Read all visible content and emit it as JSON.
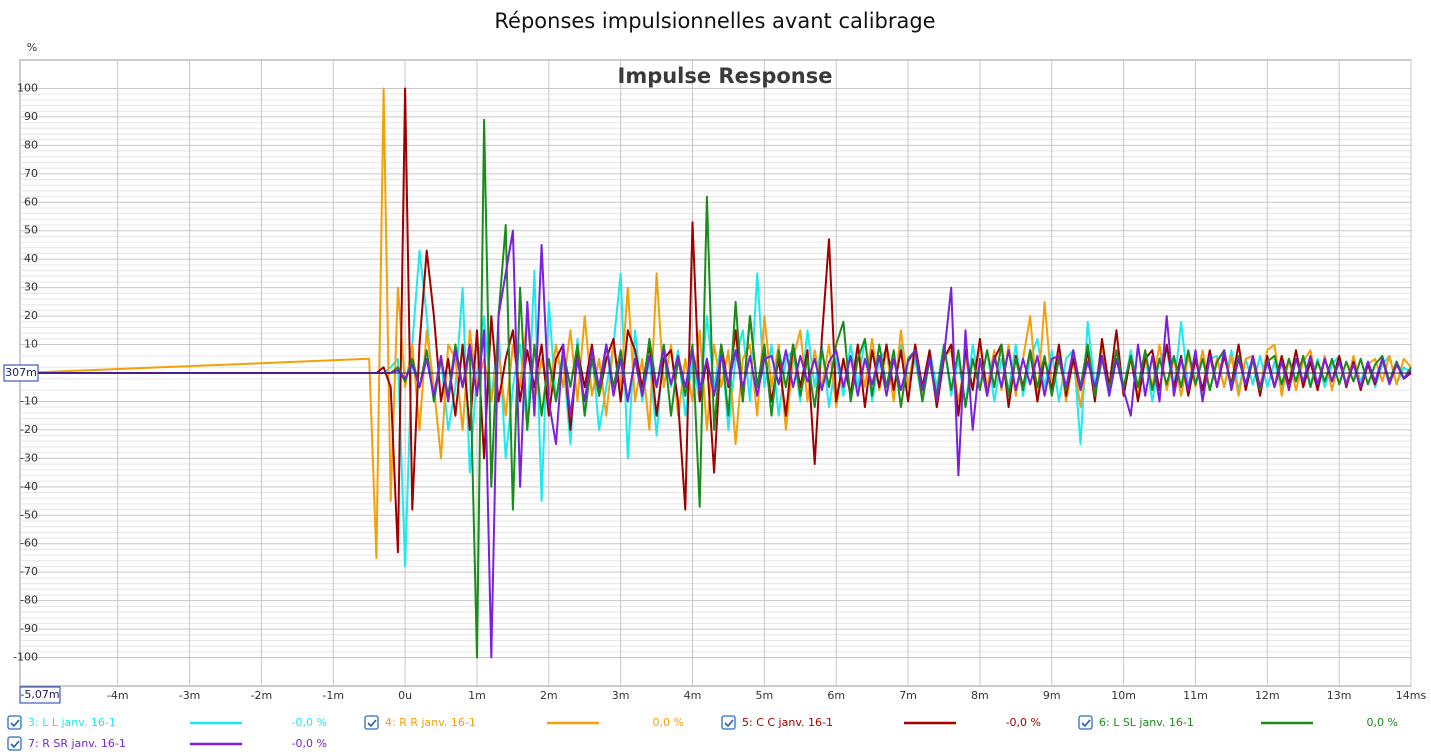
{
  "chart_data": {
    "type": "line",
    "title": "Réponses impulsionnelles avant calibrage",
    "subtitle": "Impulse Response",
    "y_unit": "%",
    "y_cursor_label": "307m",
    "x_cursor_label": "-5,07m",
    "xlim": [
      -5.36,
      14
    ],
    "ylim": [
      -110,
      110
    ],
    "xticks": [
      {
        "value": -4,
        "label": "-4m"
      },
      {
        "value": -3,
        "label": "-3m"
      },
      {
        "value": -2,
        "label": "-2m"
      },
      {
        "value": -1,
        "label": "-1m"
      },
      {
        "value": 0,
        "label": "0u"
      },
      {
        "value": 1,
        "label": "1m"
      },
      {
        "value": 2,
        "label": "2m"
      },
      {
        "value": 3,
        "label": "3m"
      },
      {
        "value": 4,
        "label": "4m"
      },
      {
        "value": 5,
        "label": "5m"
      },
      {
        "value": 6,
        "label": "6m"
      },
      {
        "value": 7,
        "label": "7m"
      },
      {
        "value": 8,
        "label": "8m"
      },
      {
        "value": 9,
        "label": "9m"
      },
      {
        "value": 10,
        "label": "10m"
      },
      {
        "value": 11,
        "label": "11m"
      },
      {
        "value": 12,
        "label": "12m"
      },
      {
        "value": 13,
        "label": "13m"
      },
      {
        "value": 14,
        "label": "14ms"
      }
    ],
    "yticks": [
      -100,
      -90,
      -80,
      -70,
      -60,
      -50,
      -40,
      -30,
      -20,
      -10,
      10,
      20,
      30,
      40,
      50,
      60,
      70,
      80,
      90,
      100
    ],
    "grid": true,
    "x": [
      -5.36,
      -0.5,
      -0.4,
      -0.3,
      -0.2,
      -0.1,
      0.0,
      0.1,
      0.2,
      0.3,
      0.4,
      0.5,
      0.6,
      0.7,
      0.8,
      0.9,
      1.0,
      1.1,
      1.2,
      1.3,
      1.4,
      1.5,
      1.6,
      1.7,
      1.8,
      1.9,
      2.0,
      2.1,
      2.2,
      2.3,
      2.4,
      2.5,
      2.6,
      2.7,
      2.8,
      2.9,
      3.0,
      3.1,
      3.2,
      3.3,
      3.4,
      3.5,
      3.6,
      3.7,
      3.8,
      3.9,
      4.0,
      4.1,
      4.2,
      4.3,
      4.4,
      4.5,
      4.6,
      4.7,
      4.8,
      4.9,
      5.0,
      5.1,
      5.2,
      5.3,
      5.4,
      5.5,
      5.6,
      5.7,
      5.8,
      5.9,
      6.0,
      6.1,
      6.2,
      6.3,
      6.4,
      6.5,
      6.6,
      6.7,
      6.8,
      6.9,
      7.0,
      7.1,
      7.2,
      7.3,
      7.4,
      7.5,
      7.6,
      7.7,
      7.8,
      7.9,
      8.0,
      8.1,
      8.2,
      8.3,
      8.4,
      8.5,
      8.6,
      8.7,
      8.8,
      8.9,
      9.0,
      9.1,
      9.2,
      9.3,
      9.4,
      9.5,
      9.6,
      9.7,
      9.8,
      9.9,
      10.0,
      10.1,
      10.2,
      10.3,
      10.4,
      10.5,
      10.6,
      10.7,
      10.8,
      10.9,
      11.0,
      11.1,
      11.2,
      11.3,
      11.4,
      11.5,
      11.6,
      11.7,
      11.8,
      11.9,
      12.0,
      12.1,
      12.2,
      12.3,
      12.4,
      12.5,
      12.6,
      12.7,
      12.8,
      12.9,
      13.0,
      13.1,
      13.2,
      13.3,
      13.4,
      13.5,
      13.6,
      13.7,
      13.8,
      13.9,
      14.0
    ],
    "series": [
      {
        "name": "3: L L janv. 16-1",
        "color": "#1de9f0",
        "legend_value": "-0,0 %",
        "values": [
          0,
          0,
          0,
          0,
          2,
          5,
          -68,
          10,
          43,
          20,
          -10,
          5,
          -20,
          -5,
          30,
          -35,
          0,
          20,
          -10,
          15,
          -30,
          -5,
          10,
          -20,
          36,
          -45,
          25,
          -10,
          5,
          -25,
          12,
          -15,
          8,
          -20,
          -5,
          10,
          35,
          -30,
          15,
          -10,
          5,
          -22,
          10,
          -5,
          8,
          -15,
          5,
          -10,
          20,
          -5,
          10,
          -20,
          5,
          15,
          -10,
          35,
          -5,
          10,
          -15,
          5,
          8,
          -10,
          15,
          -5,
          10,
          -12,
          5,
          -8,
          10,
          -5,
          12,
          -10,
          5,
          8,
          -6,
          10,
          -5,
          5,
          -10,
          8,
          -5,
          10,
          -8,
          5,
          -12,
          10,
          -5,
          8,
          -10,
          5,
          -6,
          10,
          -8,
          5,
          12,
          -5,
          8,
          -10,
          5,
          8,
          -25,
          18,
          -5,
          10,
          -8,
          5,
          -6,
          8,
          -5,
          6,
          -10,
          5,
          8,
          -6,
          18,
          -5,
          6,
          -8,
          5,
          6,
          -5,
          8,
          -6,
          5,
          -4,
          6,
          -5,
          4,
          -6,
          5,
          -3,
          6,
          -4,
          5,
          -5,
          3,
          6,
          -4,
          5,
          -3,
          4,
          -5,
          3,
          6,
          -4,
          2,
          0
        ]
      },
      {
        "name": "4: R R janv. 16-1",
        "color": "#f5a00a",
        "legend_value": "0,0 %",
        "values": [
          0,
          5,
          -65,
          100,
          -45,
          30,
          -5,
          10,
          -20,
          15,
          -5,
          -30,
          10,
          5,
          -20,
          15,
          -5,
          5,
          -10,
          8,
          -15,
          10,
          -5,
          20,
          -10,
          5,
          -8,
          10,
          -5,
          15,
          -10,
          20,
          -8,
          5,
          -15,
          10,
          -5,
          30,
          -10,
          5,
          -20,
          35,
          -5,
          10,
          -15,
          5,
          -10,
          15,
          -20,
          10,
          -5,
          8,
          -25,
          5,
          10,
          -15,
          20,
          -5,
          10,
          -20,
          5,
          15,
          -10,
          8,
          -5,
          10,
          -12,
          5,
          -8,
          10,
          -5,
          12,
          -6,
          8,
          -10,
          15,
          -5,
          10,
          -8,
          5,
          -12,
          6,
          8,
          -10,
          5,
          -6,
          10,
          -5,
          8,
          -6,
          10,
          -8,
          5,
          20,
          -10,
          25,
          -5,
          8,
          -10,
          5,
          -12,
          6,
          -8,
          10,
          -5,
          8,
          -6,
          5,
          -8,
          6,
          -5,
          10,
          -6,
          5,
          -8,
          6,
          -5,
          8,
          -6,
          5,
          -5,
          6,
          -8,
          5,
          6,
          -5,
          8,
          10,
          -8,
          5,
          -6,
          4,
          8,
          -5,
          6,
          -6,
          5,
          -4,
          6,
          -5,
          3,
          5,
          -3,
          6,
          -4,
          5,
          2
        ]
      },
      {
        "name": "5: C C janv. 16-1",
        "color": "#a00000",
        "legend_value": "-0,0 %",
        "values": [
          0,
          0,
          0,
          2,
          -5,
          -63,
          100,
          -48,
          10,
          43,
          20,
          -10,
          5,
          -15,
          10,
          -20,
          15,
          -30,
          20,
          -10,
          5,
          15,
          -10,
          8,
          -5,
          10,
          -15,
          5,
          10,
          -20,
          8,
          -5,
          10,
          -8,
          5,
          12,
          -10,
          15,
          8,
          -5,
          10,
          -15,
          5,
          8,
          -10,
          -48,
          53,
          -10,
          5,
          -35,
          10,
          -5,
          15,
          -10,
          20,
          -5,
          8,
          -10,
          5,
          -15,
          10,
          -5,
          8,
          -32,
          12,
          47,
          -10,
          5,
          -8,
          10,
          -12,
          8,
          -5,
          10,
          -6,
          8,
          -10,
          10,
          -5,
          8,
          -12,
          5,
          10,
          -15,
          8,
          -6,
          12,
          -8,
          5,
          10,
          -12,
          6,
          -5,
          8,
          -10,
          5,
          -6,
          10,
          -8,
          5,
          -6,
          8,
          -10,
          12,
          -5,
          15,
          -8,
          6,
          -10,
          5,
          8,
          -6,
          10,
          -5,
          6,
          -8,
          5,
          -6,
          8,
          -5,
          6,
          -4,
          10,
          -6,
          5,
          -8,
          6,
          -5,
          6,
          -4,
          8,
          -5,
          4,
          -6,
          5,
          -3,
          6,
          -5,
          4,
          -6,
          3,
          -4,
          5,
          -3,
          4,
          -2,
          0
        ]
      },
      {
        "name": "6: L SL janv. 16-1",
        "color": "#1a8c1a",
        "legend_value": "0,0 %",
        "values": [
          0,
          0,
          0,
          0,
          0,
          2,
          -3,
          5,
          -5,
          8,
          -10,
          5,
          -8,
          10,
          -5,
          8,
          -100,
          89,
          -40,
          20,
          52,
          -48,
          30,
          -20,
          10,
          -15,
          5,
          -10,
          8,
          -5,
          10,
          -15,
          5,
          -8,
          10,
          -5,
          8,
          -10,
          5,
          -8,
          12,
          -5,
          10,
          -15,
          5,
          -8,
          10,
          -47,
          62,
          -20,
          10,
          -15,
          25,
          -10,
          20,
          -5,
          10,
          -15,
          8,
          -5,
          10,
          -8,
          5,
          -12,
          8,
          -5,
          10,
          18,
          -10,
          5,
          12,
          -8,
          10,
          -5,
          8,
          -12,
          5,
          8,
          -10,
          5,
          -8,
          10,
          -6,
          8,
          -12,
          5,
          -6,
          8,
          -5,
          10,
          -8,
          5,
          -6,
          8,
          -5,
          6,
          -8,
          5,
          -6,
          8,
          -5,
          10,
          -8,
          5,
          -6,
          8,
          -5,
          6,
          -5,
          8,
          -6,
          5,
          -4,
          6,
          -5,
          8,
          -4,
          5,
          -6,
          4,
          8,
          -5,
          6,
          -4,
          5,
          -6,
          4,
          6,
          -4,
          5,
          -3,
          6,
          -5,
          4,
          -3,
          5,
          -4,
          4,
          -3,
          5,
          -4,
          3,
          6,
          -3,
          4,
          -2,
          2
        ]
      },
      {
        "name": "7: R SR janv. 16-1",
        "color": "#7b1fe0",
        "legend_value": "-0,0 %",
        "values": [
          0,
          0,
          0,
          0,
          0,
          1,
          -2,
          3,
          -5,
          5,
          -8,
          6,
          -10,
          8,
          -5,
          10,
          -8,
          15,
          -100,
          20,
          35,
          50,
          -40,
          25,
          -15,
          45,
          -10,
          -25,
          10,
          -15,
          5,
          -10,
          8,
          -5,
          10,
          -8,
          5,
          -10,
          5,
          -8,
          6,
          -5,
          8,
          -4,
          6,
          -5,
          8,
          -6,
          5,
          -8,
          6,
          -4,
          8,
          -5,
          6,
          -8,
          5,
          6,
          -4,
          8,
          -5,
          6,
          -3,
          5,
          -6,
          4,
          8,
          -5,
          6,
          -8,
          5,
          -4,
          6,
          -8,
          5,
          -6,
          4,
          8,
          -6,
          5,
          -10,
          6,
          30,
          -36,
          15,
          -20,
          5,
          -8,
          6,
          -5,
          8,
          -6,
          5,
          -4,
          6,
          -8,
          5,
          6,
          -5,
          8,
          -6,
          4,
          -5,
          6,
          -8,
          5,
          -6,
          -15,
          10,
          -8,
          6,
          -10,
          20,
          -8,
          5,
          -6,
          8,
          -10,
          6,
          -5,
          8,
          -6,
          5,
          -4,
          6,
          -5,
          4,
          -5,
          4,
          -6,
          5,
          -3,
          6,
          -4,
          5,
          -3,
          4,
          -4,
          3,
          -5,
          4,
          -3,
          5,
          -4,
          3,
          -2,
          1
        ]
      }
    ]
  }
}
